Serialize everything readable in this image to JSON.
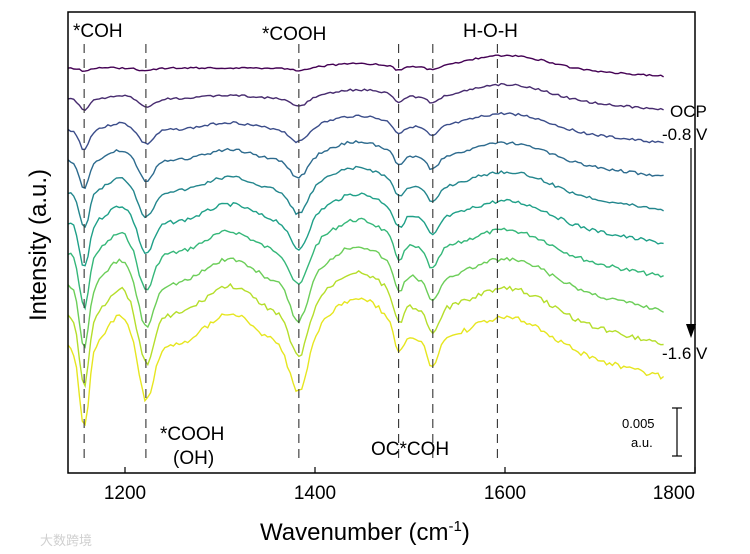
{
  "chart_data": {
    "type": "line",
    "title": "",
    "xlabel": "Wavenumber (cm-1)",
    "xlabel_main": "Wavenumber (cm",
    "xlabel_sup": "-1",
    "xlabel_close": ")",
    "ylabel": "Intensity (a.u.)",
    "xlim": [
      1140,
      1800
    ],
    "xticks": [
      1200,
      1400,
      1600,
      1800
    ],
    "yaxis_ticks": "none",
    "grid": false,
    "legend": "none (direct labels at right)",
    "series": [
      {
        "name": "OCP",
        "color": "#440154",
        "offset": 0.0
      },
      {
        "name": "-0.8 V",
        "color": "#472b6f",
        "offset": 0.5
      },
      {
        "name": "",
        "color": "#3b4d8a",
        "offset": 1.0
      },
      {
        "name": "",
        "color": "#2d6b8e",
        "offset": 1.5
      },
      {
        "name": "",
        "color": "#23868d",
        "offset": 2.0
      },
      {
        "name": "",
        "color": "#1fa088",
        "offset": 2.5
      },
      {
        "name": "",
        "color": "#35b779",
        "offset": 3.0
      },
      {
        "name": "",
        "color": "#6cce59",
        "offset": 3.5
      },
      {
        "name": "",
        "color": "#b5de2b",
        "offset": 4.0
      },
      {
        "name": "-1.6 V",
        "color": "#e6e620",
        "offset": 4.5
      }
    ],
    "arrow_label_top": "OCP",
    "arrow_label_second": "-0.8 V",
    "arrow_label_bottom": "-1.6 V",
    "annotations": [
      {
        "text": "*COH",
        "x": 1157
      },
      {
        "text": "*COOH",
        "x": 1383
      },
      {
        "text": "H-O-H",
        "x": 1592
      },
      {
        "text": "*COOH",
        "x": 1222
      },
      {
        "text": "(OH)",
        "x": 1222
      },
      {
        "text": "OC*COH",
        "x": 1505
      }
    ],
    "reference_lines": [
      1157,
      1222,
      1383,
      1488,
      1524,
      1592
    ],
    "scale_bar": {
      "value_text": "0.005",
      "unit_text": "a.u.",
      "value": 0.005
    }
  },
  "watermark": "大数跨境"
}
